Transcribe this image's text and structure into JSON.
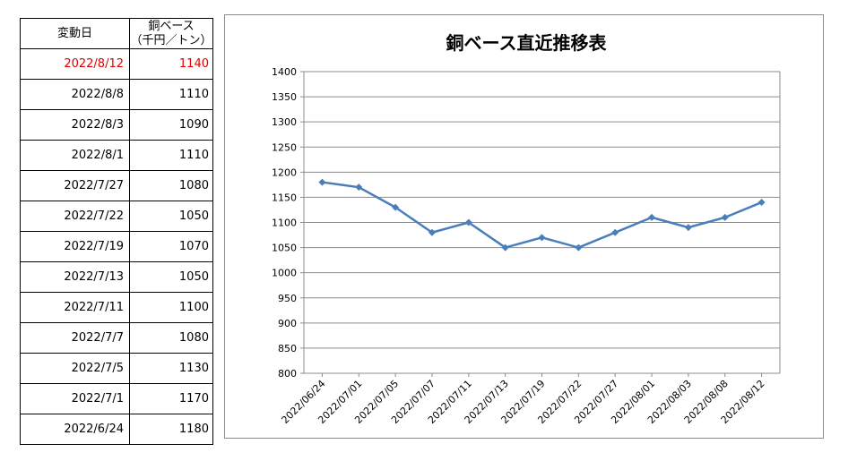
{
  "table": {
    "header_date": "変動日",
    "header_value_line1": "銅ベース",
    "header_value_line2": "（千円／トン）",
    "rows": [
      {
        "date": "2022/8/12",
        "value": "1140"
      },
      {
        "date": "2022/8/8",
        "value": "1110"
      },
      {
        "date": "2022/8/3",
        "value": "1090"
      },
      {
        "date": "2022/8/1",
        "value": "1110"
      },
      {
        "date": "2022/7/27",
        "value": "1080"
      },
      {
        "date": "2022/7/22",
        "value": "1050"
      },
      {
        "date": "2022/7/19",
        "value": "1070"
      },
      {
        "date": "2022/7/13",
        "value": "1050"
      },
      {
        "date": "2022/7/11",
        "value": "1100"
      },
      {
        "date": "2022/7/7",
        "value": "1080"
      },
      {
        "date": "2022/7/5",
        "value": "1130"
      },
      {
        "date": "2022/7/1",
        "value": "1170"
      },
      {
        "date": "2022/6/24",
        "value": "1180"
      }
    ],
    "highlight_color": "#e00000"
  },
  "chart_data": {
    "type": "line",
    "title": "銅ベース直近推移表",
    "xlabel": "",
    "ylabel": "",
    "categories": [
      "2022/06/24",
      "2022/07/01",
      "2022/07/05",
      "2022/07/07",
      "2022/07/11",
      "2022/07/13",
      "2022/07/19",
      "2022/07/22",
      "2022/07/27",
      "2022/08/01",
      "2022/08/03",
      "2022/08/08",
      "2022/08/12"
    ],
    "series": [
      {
        "values": [
          1180,
          1170,
          1130,
          1080,
          1100,
          1050,
          1070,
          1050,
          1080,
          1110,
          1090,
          1110,
          1140
        ]
      }
    ],
    "ylim": [
      800,
      1400
    ],
    "yticks": [
      800,
      850,
      900,
      950,
      1000,
      1050,
      1100,
      1150,
      1200,
      1250,
      1300,
      1350,
      1400
    ],
    "grid": true,
    "legend": "none",
    "line_color": "#4a7ebb"
  }
}
